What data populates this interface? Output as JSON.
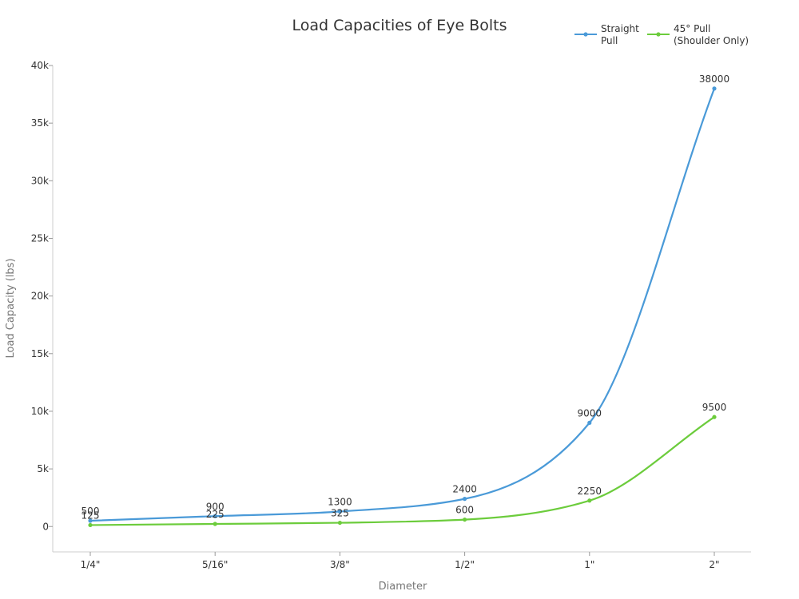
{
  "chart_data": {
    "type": "line",
    "title": "Load Capacities of Eye Bolts",
    "xlabel": "Diameter",
    "ylabel": "Load Capacity (lbs)",
    "categories": [
      "1/4\"",
      "5/16\"",
      "3/8\"",
      "1/2\"",
      "1\"",
      "2\""
    ],
    "ylim": [
      -2200,
      40000
    ],
    "yticks": [
      0,
      5000,
      10000,
      15000,
      20000,
      25000,
      30000,
      35000,
      40000
    ],
    "ytick_labels": [
      "0",
      "5k",
      "10k",
      "15k",
      "20k",
      "25k",
      "30k",
      "35k",
      "40k"
    ],
    "grid": false,
    "legend_position": "top-right",
    "series": [
      {
        "name": "Straight Pull",
        "legend_lines": [
          "Straight",
          "Pull"
        ],
        "color": "#4a9ad8",
        "values": [
          500,
          900,
          1300,
          2400,
          9000,
          38000
        ]
      },
      {
        "name": "45° Pull (Shoulder Only)",
        "legend_lines": [
          "45° Pull",
          "(Shoulder Only)"
        ],
        "color": "#6ccc3c",
        "values": [
          125,
          225,
          325,
          600,
          2250,
          9500
        ]
      }
    ]
  }
}
